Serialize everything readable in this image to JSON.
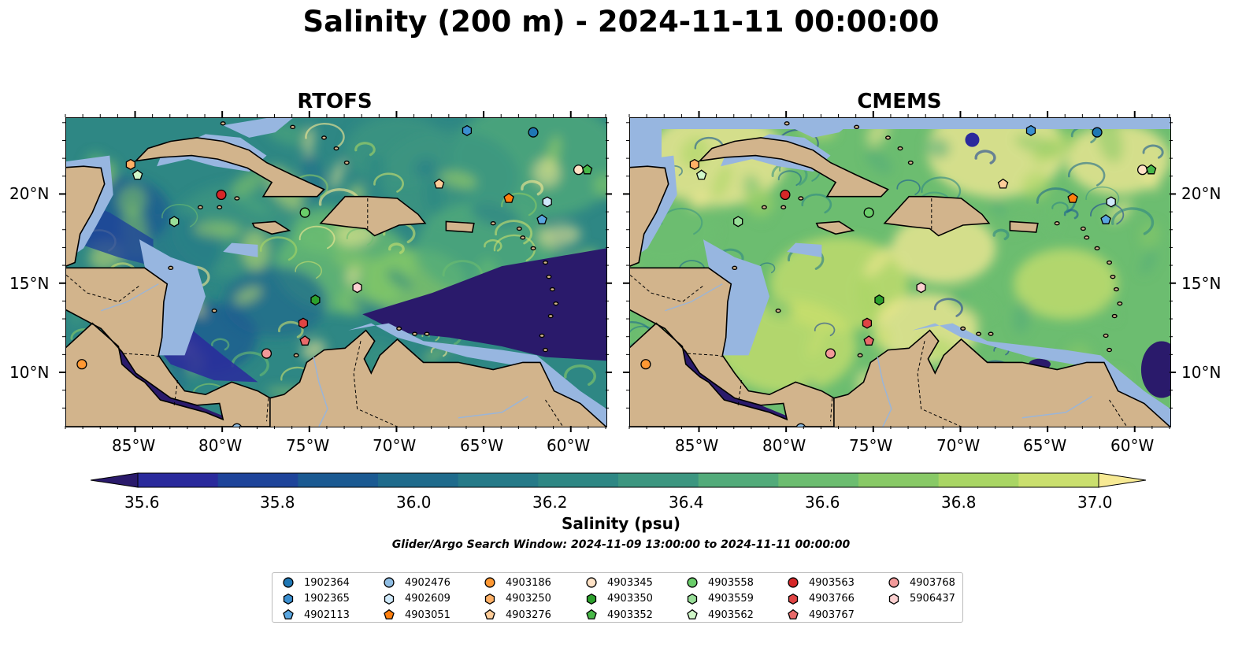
{
  "title": "Salinity (200 m) - 2024-11-11 00:00:00",
  "panels": [
    {
      "title": "RTOFS",
      "variant": "rtofs"
    },
    {
      "title": "CMEMS",
      "variant": "cmems"
    }
  ],
  "lon_ticks": [
    "85°W",
    "80°W",
    "75°W",
    "70°W",
    "65°W",
    "60°W"
  ],
  "lat_ticks": [
    "20°N",
    "15°N",
    "10°N"
  ],
  "extent": {
    "lon": [
      -89,
      -58
    ],
    "lat": [
      7,
      24.3
    ]
  },
  "colorbar": {
    "label": "Salinity (psu)",
    "min": 35.5,
    "max": 37.1,
    "step": 0.1,
    "extend": "both",
    "tick_labels": [
      "35.6",
      "35.8",
      "36.0",
      "36.2",
      "36.4",
      "36.6",
      "36.8",
      "37.0"
    ],
    "colormap": "haline",
    "colors": [
      "#2a1a6b",
      "#2a2a9c",
      "#1e449a",
      "#1b5a92",
      "#1f6b8c",
      "#267a88",
      "#2e8784",
      "#3c9680",
      "#52ab7a",
      "#6cbd70",
      "#88c966",
      "#a9d564",
      "#cadf6e",
      "#f7ea94"
    ]
  },
  "search_window": "Glider/Argo Search Window: 2024-11-09 13:00:00 to 2024-11-11 00:00:00",
  "colors": {
    "land": "#d2b48c",
    "shelf": "#97b6e0",
    "coast": "#000000",
    "rivers": "#9ab5d8"
  },
  "legend": {
    "columns": [
      [
        {
          "id": "1902364",
          "marker": "circle",
          "color": "#1f77b4"
        },
        {
          "id": "1902365",
          "marker": "hexagon",
          "color": "#3b8fd0"
        },
        {
          "id": "4902113",
          "marker": "pentagon",
          "color": "#5aa6e0"
        }
      ],
      [
        {
          "id": "4902476",
          "marker": "circle",
          "color": "#8fbde3"
        },
        {
          "id": "4902609",
          "marker": "hexagon",
          "color": "#cfe9fa"
        },
        {
          "id": "4903051",
          "marker": "pentagon",
          "color": "#ff7f0e"
        }
      ],
      [
        {
          "id": "4903186",
          "marker": "circle",
          "color": "#ff9833"
        },
        {
          "id": "4903250",
          "marker": "hexagon",
          "color": "#ffb066"
        },
        {
          "id": "4903276",
          "marker": "pentagon",
          "color": "#ffcd99"
        }
      ],
      [
        {
          "id": "4903345",
          "marker": "circle",
          "color": "#ffe2c6"
        },
        {
          "id": "4903350",
          "marker": "hexagon",
          "color": "#2ca02c"
        },
        {
          "id": "4903352",
          "marker": "pentagon",
          "color": "#48b848"
        }
      ],
      [
        {
          "id": "4903558",
          "marker": "circle",
          "color": "#6acd6a"
        },
        {
          "id": "4903559",
          "marker": "hexagon",
          "color": "#98de98"
        },
        {
          "id": "4903562",
          "marker": "pentagon",
          "color": "#d0f7c8"
        }
      ],
      [
        {
          "id": "4903563",
          "marker": "circle",
          "color": "#d62728"
        },
        {
          "id": "4903766",
          "marker": "hexagon",
          "color": "#e04444"
        },
        {
          "id": "4903767",
          "marker": "pentagon",
          "color": "#e86a6a"
        }
      ],
      [
        {
          "id": "4903768",
          "marker": "circle",
          "color": "#f29999"
        },
        {
          "id": "5906437",
          "marker": "hexagon",
          "color": "#fcd0d0"
        }
      ]
    ]
  },
  "floats": [
    {
      "id": "1902364",
      "lon": -62.2,
      "lat": 23.5
    },
    {
      "id": "1902365",
      "lon": -66.0,
      "lat": 23.6
    },
    {
      "id": "4902113",
      "lon": -61.7,
      "lat": 18.6
    },
    {
      "id": "4902476",
      "lon": -79.2,
      "lat": 6.9
    },
    {
      "id": "4902609",
      "lon": -61.4,
      "lat": 19.6
    },
    {
      "id": "4903051",
      "lon": -63.6,
      "lat": 19.8
    },
    {
      "id": "4903186",
      "lon": -88.1,
      "lat": 10.5
    },
    {
      "id": "4903250",
      "lon": -85.3,
      "lat": 21.7
    },
    {
      "id": "4903276",
      "lon": -67.6,
      "lat": 20.6
    },
    {
      "id": "4903345",
      "lon": -59.6,
      "lat": 21.4
    },
    {
      "id": "4903350",
      "lon": -74.7,
      "lat": 14.1
    },
    {
      "id": "4903352",
      "lon": -59.1,
      "lat": 21.4
    },
    {
      "id": "4903558",
      "lon": -75.3,
      "lat": 19.0
    },
    {
      "id": "4903559",
      "lon": -82.8,
      "lat": 18.5
    },
    {
      "id": "4903562",
      "lon": -84.9,
      "lat": 21.1
    },
    {
      "id": "4903563",
      "lon": -80.1,
      "lat": 20.0
    },
    {
      "id": "4903766",
      "lon": -75.4,
      "lat": 12.8
    },
    {
      "id": "4903767",
      "lon": -75.3,
      "lat": 11.8
    },
    {
      "id": "4903768",
      "lon": -77.5,
      "lat": 11.1
    },
    {
      "id": "5906437",
      "lon": -72.3,
      "lat": 14.8
    }
  ]
}
